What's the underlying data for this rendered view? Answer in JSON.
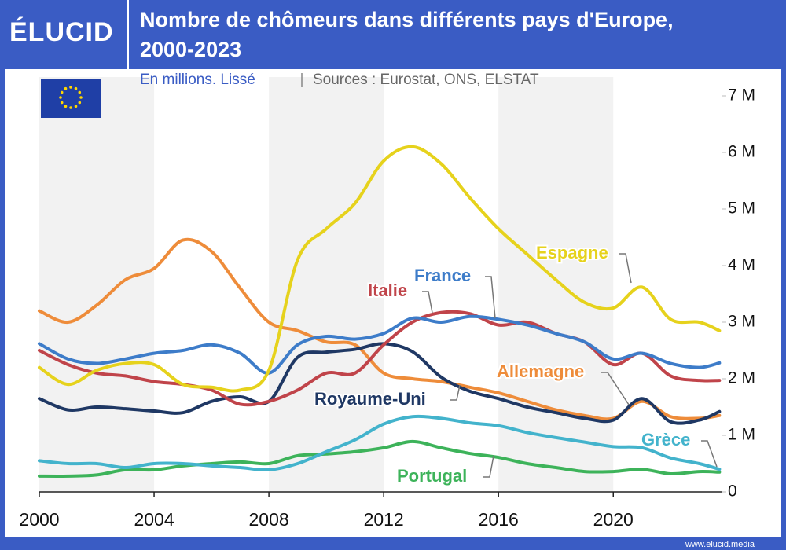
{
  "logo": "ÉLUCID",
  "footer": "www.elucid.media",
  "chart_data": {
    "type": "line",
    "title": "Nombre de chômeurs dans différents pays d'Europe, 2000-2023",
    "subtitle": "En millions. Lissé",
    "source": "Sources : Eurostat, ONS, ELSTAT",
    "x": [
      2000,
      2001,
      2002,
      2003,
      2004,
      2005,
      2006,
      2007,
      2008,
      2009,
      2010,
      2011,
      2012,
      2013,
      2014,
      2015,
      2016,
      2017,
      2018,
      2019,
      2020,
      2021,
      2022,
      2023,
      2023.7
    ],
    "xlim": [
      2000,
      2023.8
    ],
    "xticks": [
      2000,
      2004,
      2008,
      2012,
      2016,
      2020
    ],
    "ylim": [
      0,
      7
    ],
    "yticks": [
      0,
      {
        "value": 1,
        "label": "1 M"
      },
      {
        "value": 2,
        "label": "2 M"
      },
      {
        "value": 3,
        "label": "3 M"
      },
      {
        "value": 4,
        "label": "4 M"
      },
      {
        "value": 5,
        "label": "5 M"
      },
      {
        "value": 6,
        "label": "6 M"
      },
      {
        "value": 7,
        "label": "7 M"
      }
    ],
    "grid": false,
    "series": [
      {
        "name": "Espagne",
        "color": "#e6d21c",
        "values": [
          2.2,
          1.9,
          2.15,
          2.27,
          2.25,
          1.9,
          1.85,
          1.8,
          2.15,
          4.1,
          4.65,
          5.1,
          5.85,
          6.1,
          5.8,
          5.2,
          4.65,
          4.2,
          3.75,
          3.35,
          3.25,
          3.62,
          3.05,
          3.0,
          2.85
        ]
      },
      {
        "name": "France",
        "color": "#3d7cc9",
        "values": [
          2.62,
          2.35,
          2.27,
          2.35,
          2.45,
          2.5,
          2.6,
          2.45,
          2.1,
          2.6,
          2.75,
          2.7,
          2.8,
          3.07,
          3.0,
          3.1,
          3.05,
          2.95,
          2.8,
          2.65,
          2.35,
          2.45,
          2.27,
          2.2,
          2.28
        ]
      },
      {
        "name": "Italie",
        "color": "#c0444a",
        "values": [
          2.5,
          2.25,
          2.1,
          2.05,
          1.95,
          1.9,
          1.8,
          1.55,
          1.6,
          1.8,
          2.1,
          2.1,
          2.6,
          3.0,
          3.17,
          3.15,
          2.95,
          3.0,
          2.8,
          2.65,
          2.25,
          2.45,
          2.05,
          1.97,
          1.97
        ]
      },
      {
        "name": "Allemagne",
        "color": "#ee8c3a",
        "values": [
          3.2,
          3.0,
          3.3,
          3.75,
          3.95,
          4.45,
          4.25,
          3.6,
          3.0,
          2.85,
          2.65,
          2.6,
          2.1,
          2.0,
          1.95,
          1.85,
          1.75,
          1.6,
          1.45,
          1.35,
          1.3,
          1.6,
          1.33,
          1.3,
          1.35
        ]
      },
      {
        "name": "Royaume-Uni",
        "color": "#1f3864",
        "values": [
          1.65,
          1.45,
          1.5,
          1.47,
          1.43,
          1.4,
          1.6,
          1.68,
          1.6,
          2.38,
          2.47,
          2.52,
          2.62,
          2.48,
          2.03,
          1.78,
          1.65,
          1.5,
          1.4,
          1.3,
          1.27,
          1.65,
          1.24,
          1.27,
          1.42
        ]
      },
      {
        "name": "Grèce",
        "color": "#43b3cc",
        "values": [
          0.55,
          0.5,
          0.5,
          0.43,
          0.5,
          0.5,
          0.46,
          0.43,
          0.39,
          0.5,
          0.71,
          0.92,
          1.2,
          1.33,
          1.3,
          1.22,
          1.17,
          1.05,
          0.96,
          0.88,
          0.8,
          0.78,
          0.6,
          0.5,
          0.4
        ]
      },
      {
        "name": "Portugal",
        "color": "#3db35a",
        "values": [
          0.28,
          0.28,
          0.3,
          0.39,
          0.39,
          0.46,
          0.5,
          0.53,
          0.5,
          0.64,
          0.67,
          0.71,
          0.78,
          0.89,
          0.78,
          0.68,
          0.61,
          0.5,
          0.43,
          0.36,
          0.36,
          0.4,
          0.32,
          0.36,
          0.35
        ]
      }
    ]
  }
}
